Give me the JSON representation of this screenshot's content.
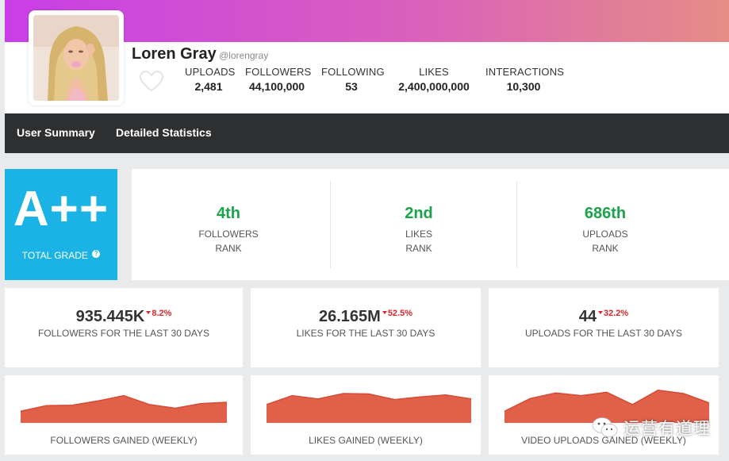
{
  "profile": {
    "name": "Loren Gray",
    "handle": "@lorengray"
  },
  "stats": [
    {
      "label": "UPLOADS",
      "value": "2,481"
    },
    {
      "label": "FOLLOWERS",
      "value": "44,100,000"
    },
    {
      "label": "FOLLOWING",
      "value": "53"
    },
    {
      "label": "LIKES",
      "value": "2,400,000,000"
    },
    {
      "label": "INTERACTIONS",
      "value": "10,300"
    }
  ],
  "nav": [
    {
      "label": "User Summary"
    },
    {
      "label": "Detailed Statistics"
    }
  ],
  "grade": {
    "value": "A++",
    "label": "TOTAL GRADE",
    "help_icon": "?"
  },
  "ranks": [
    {
      "value": "4th",
      "label": "FOLLOWERS",
      "sub": "RANK"
    },
    {
      "value": "2nd",
      "label": "LIKES",
      "sub": "RANK"
    },
    {
      "value": "686th",
      "label": "UPLOADS",
      "sub": "RANK"
    }
  ],
  "metrics": [
    {
      "value": "935.445K",
      "delta": "8.2%",
      "label": "FOLLOWERS FOR THE LAST 30 DAYS"
    },
    {
      "value": "26.165M",
      "delta": "52.5%",
      "label": "LIKES FOR THE LAST 30 DAYS"
    },
    {
      "value": "44",
      "delta": "32.2%",
      "label": "UPLOADS FOR THE LAST 30 DAYS"
    }
  ],
  "sparklines": [
    {
      "label": "FOLLOWERS GAINED (WEEKLY)",
      "values": [
        0.35,
        0.52,
        0.53,
        0.66,
        0.82,
        0.55,
        0.44,
        0.58,
        0.62
      ]
    },
    {
      "label": "LIKES GAINED (WEEKLY)",
      "values": [
        0.55,
        0.82,
        0.72,
        0.88,
        0.87,
        0.7,
        0.78,
        0.84,
        0.72
      ]
    },
    {
      "label": "VIDEO UPLOADS GAINED (WEEKLY)",
      "values": [
        0.35,
        0.73,
        0.9,
        0.82,
        0.92,
        0.55,
        0.98,
        0.88,
        0.6
      ]
    }
  ],
  "colors": {
    "banner_start": "#c93ee8",
    "banner_end": "#e58d86",
    "grade_bg": "#1bb3e5",
    "rank_green": "#1aa34a",
    "delta_red": "#d9262b",
    "spark_fill": "#e0604a",
    "nav_bg": "#2e2f30"
  },
  "watermark": {
    "text": "运营有道理",
    "icon": "wechat-icon"
  }
}
